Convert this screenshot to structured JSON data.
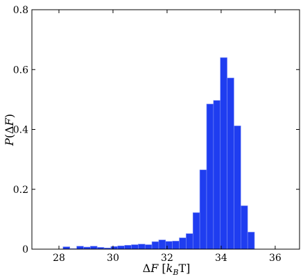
{
  "chart_data": {
    "type": "bar",
    "title": "",
    "xlabel": "ΔF [k_B T]",
    "ylabel": "P(ΔF)",
    "xlim": [
      27,
      36.9
    ],
    "ylim": [
      0,
      0.8
    ],
    "xticks": [
      28,
      30,
      32,
      34,
      36
    ],
    "yticks": [
      0,
      0.2,
      0.4,
      0.6,
      0.8
    ],
    "xtick_labels": [
      "28",
      "30",
      "32",
      "34",
      "36"
    ],
    "ytick_labels": [
      "0",
      "0.2",
      "0.4",
      "0.6",
      "0.8"
    ],
    "grid": false,
    "bin_width": 0.253,
    "bin_edges_start": 28.15,
    "values": [
      0.008,
      0.002,
      0.01,
      0.007,
      0.01,
      0.006,
      0.004,
      0.009,
      0.011,
      0.013,
      0.015,
      0.017,
      0.015,
      0.025,
      0.031,
      0.026,
      0.027,
      0.038,
      0.052,
      0.122,
      0.265,
      0.485,
      0.497,
      0.64,
      0.572,
      0.412,
      0.145,
      0.057
    ]
  }
}
